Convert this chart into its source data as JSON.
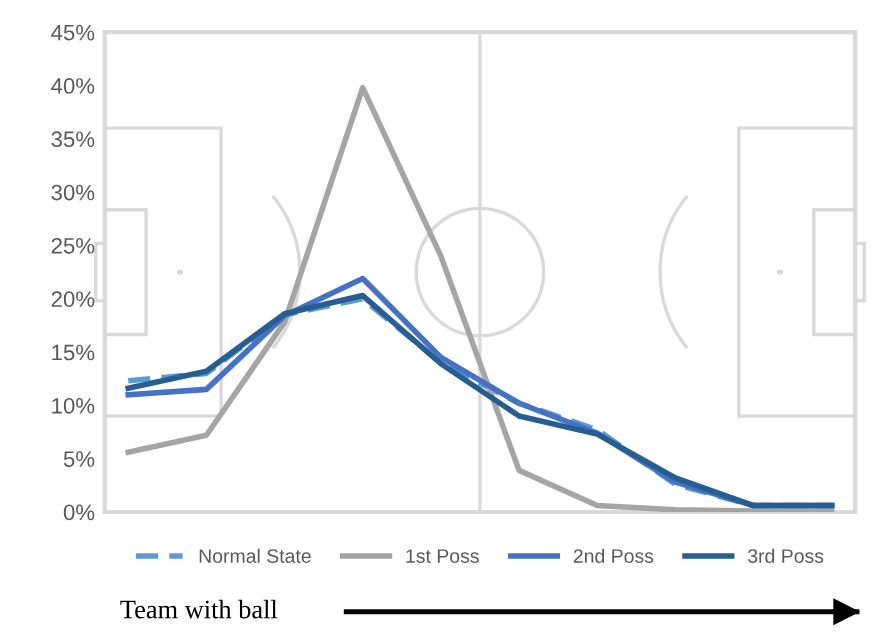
{
  "chart_data": {
    "type": "line",
    "categories": [
      null,
      null,
      null,
      null,
      null,
      null,
      null,
      null,
      null,
      null
    ],
    "series": [
      {
        "name": "Normal State",
        "color": "#5b9bd5",
        "line_style": "dashed",
        "values": [
          12.3,
          13.0,
          18.5,
          20.0,
          14.0,
          10.2,
          7.7,
          2.6,
          0.6,
          0.6
        ]
      },
      {
        "name": "1st Poss",
        "color": "#a5a5a5",
        "line_style": "solid",
        "values": [
          5.6,
          7.2,
          17.8,
          39.8,
          24.0,
          3.9,
          0.6,
          0.2,
          0.1,
          0.1
        ]
      },
      {
        "name": "2nd Poss",
        "color": "#4472c4",
        "line_style": "solid",
        "values": [
          11.0,
          11.5,
          18.4,
          21.9,
          14.5,
          10.2,
          7.4,
          2.8,
          0.6,
          0.6
        ]
      },
      {
        "name": "3rd Poss",
        "color": "#255e91",
        "line_style": "solid",
        "values": [
          11.6,
          13.2,
          18.6,
          20.3,
          13.9,
          9.0,
          7.3,
          3.2,
          0.6,
          0.6
        ]
      }
    ],
    "ylim": [
      0,
      45
    ],
    "yticks": [
      {
        "value": 0,
        "label": "0%"
      },
      {
        "value": 5,
        "label": "5%"
      },
      {
        "value": 10,
        "label": "10%"
      },
      {
        "value": 15,
        "label": "15%"
      },
      {
        "value": 20,
        "label": "20%"
      },
      {
        "value": 25,
        "label": "25%"
      },
      {
        "value": 30,
        "label": "30%"
      },
      {
        "value": 35,
        "label": "35%"
      },
      {
        "value": 40,
        "label": "40%"
      },
      {
        "value": 45,
        "label": "45%"
      }
    ],
    "grid": false,
    "legend": "bottom",
    "marker": "none",
    "annotations": [
      "Team with ball"
    ]
  }
}
